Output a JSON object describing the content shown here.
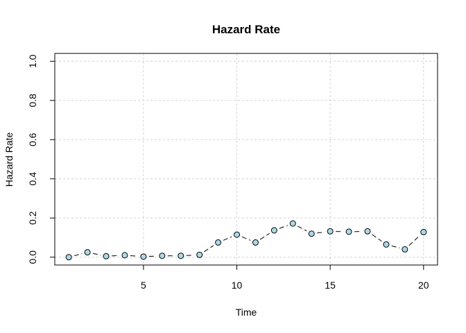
{
  "chart_data": {
    "type": "line",
    "title": "Hazard Rate",
    "xlabel": "Time",
    "ylabel": "Hazard Rate",
    "xlim": [
      0.25,
      20.75
    ],
    "ylim": [
      -0.04,
      1.04
    ],
    "xticks": [
      5,
      10,
      15,
      20
    ],
    "yticks": [
      0.0,
      0.2,
      0.4,
      0.6,
      0.8,
      1.0
    ],
    "ytick_labels": [
      "0.0",
      "0.2",
      "0.4",
      "0.6",
      "0.8",
      "1.0"
    ],
    "grid": true,
    "series": [
      {
        "x": [
          1,
          2,
          3,
          4,
          5,
          6,
          7,
          8,
          9,
          10,
          11,
          12,
          13,
          14,
          15,
          16,
          17,
          18,
          19,
          20
        ],
        "values": [
          0.0,
          0.025,
          0.005,
          0.01,
          0.003,
          0.007,
          0.007,
          0.012,
          0.075,
          0.115,
          0.075,
          0.137,
          0.172,
          0.12,
          0.132,
          0.13,
          0.132,
          0.065,
          0.04,
          0.128
        ],
        "line_color": "#000000",
        "marker_fill": "#add8e6",
        "marker_edge": "#000000",
        "line_style": "dashed"
      }
    ]
  }
}
